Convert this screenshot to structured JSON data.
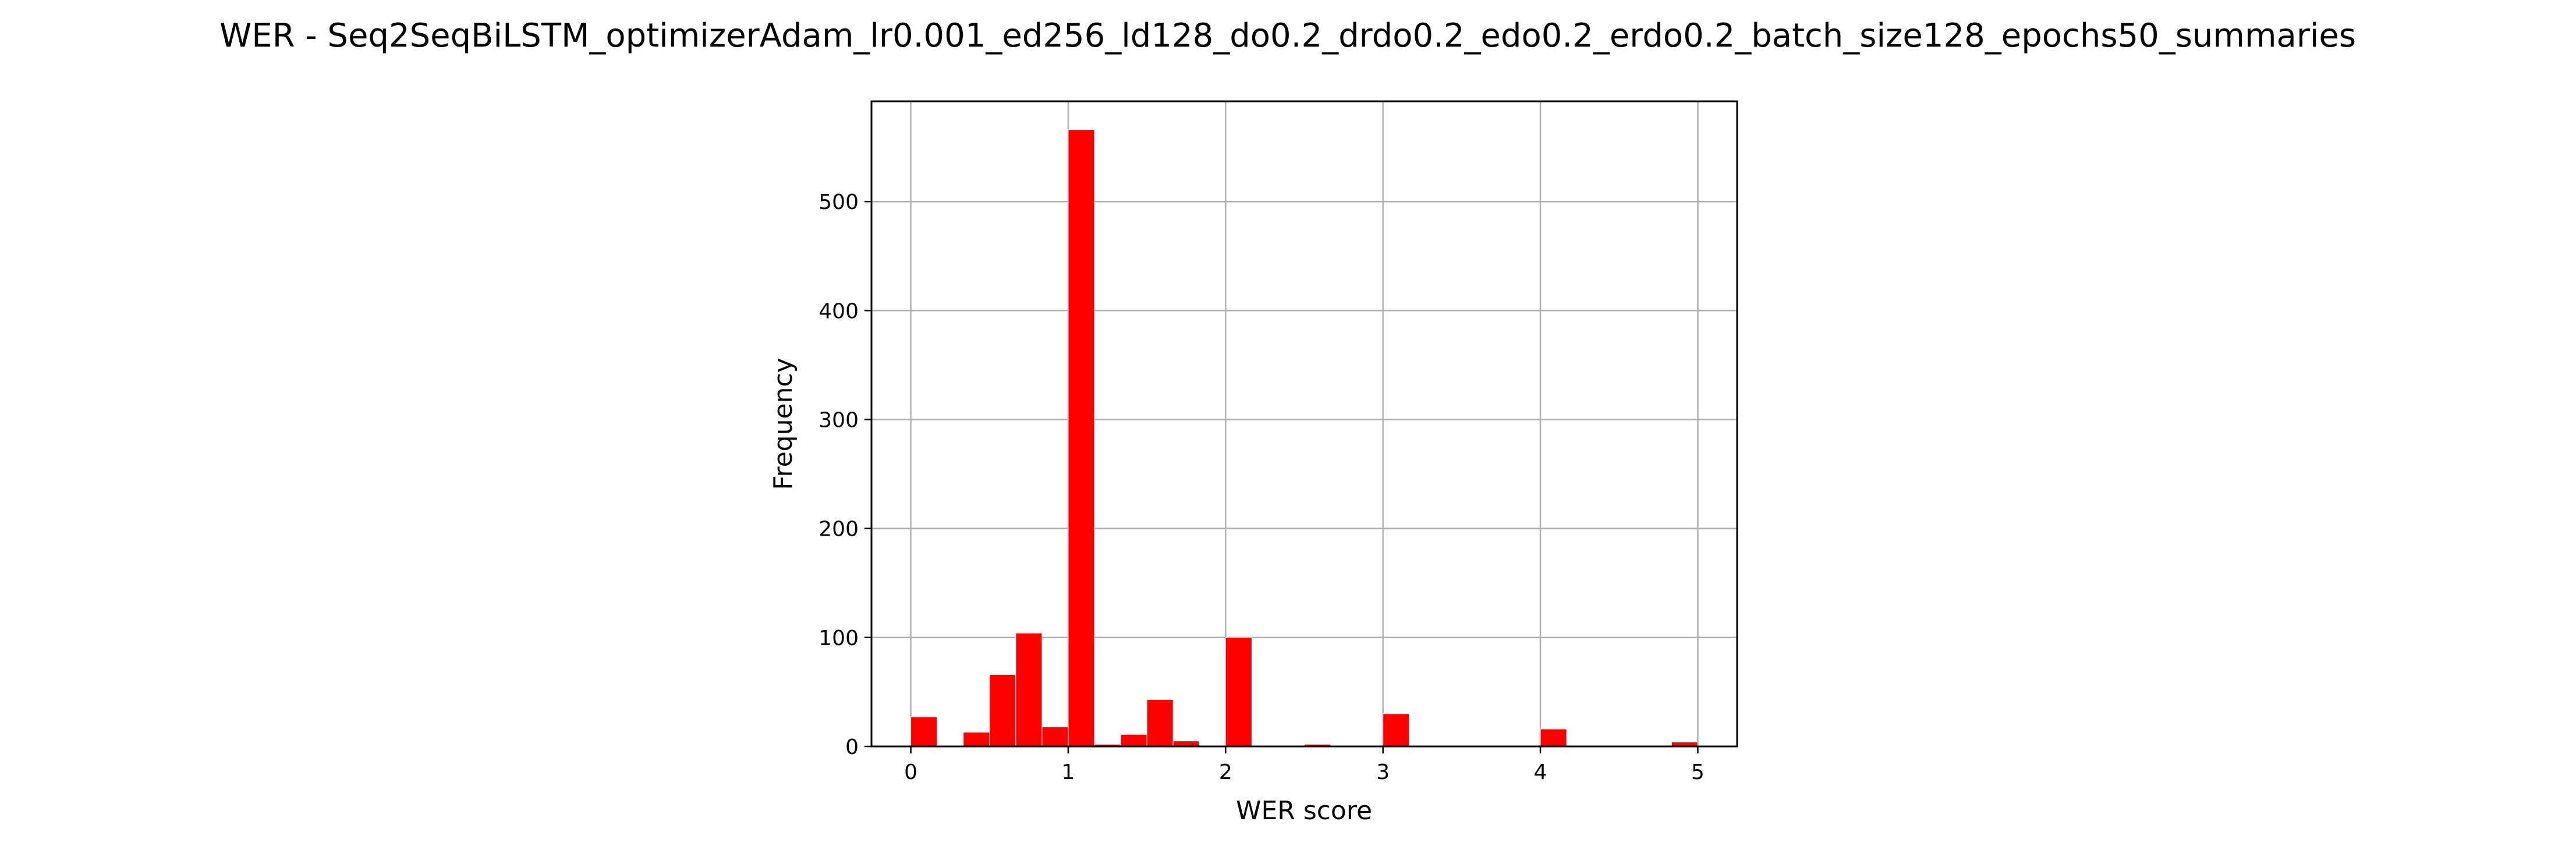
{
  "chart_data": {
    "type": "bar",
    "title": "WER - Seq2SeqBiLSTM_optimizerAdam_lr0.001_ed256_ld128_do0.2_drdo0.2_edo0.2_erdo0.2_batch_size128_epochs50_summaries",
    "xlabel": "WER score",
    "ylabel": "Frequency",
    "xlim": [
      -0.25,
      5.25
    ],
    "ylim": [
      0,
      592
    ],
    "xticks": [
      "0",
      "1",
      "2",
      "3",
      "4",
      "5"
    ],
    "yticks": [
      "0",
      "100",
      "200",
      "300",
      "400",
      "500"
    ],
    "grid": true,
    "bar_color": "#ff0000",
    "bin_width": 0.1667,
    "bins": [
      {
        "x0": 0.0,
        "count": 27
      },
      {
        "x0": 0.1667,
        "count": 1
      },
      {
        "x0": 0.3333,
        "count": 13
      },
      {
        "x0": 0.5,
        "count": 66
      },
      {
        "x0": 0.6667,
        "count": 104
      },
      {
        "x0": 0.8333,
        "count": 18
      },
      {
        "x0": 1.0,
        "count": 566
      },
      {
        "x0": 1.1667,
        "count": 2
      },
      {
        "x0": 1.3333,
        "count": 11
      },
      {
        "x0": 1.5,
        "count": 43
      },
      {
        "x0": 1.6667,
        "count": 5
      },
      {
        "x0": 1.8333,
        "count": 0
      },
      {
        "x0": 2.0,
        "count": 100
      },
      {
        "x0": 2.1667,
        "count": 0
      },
      {
        "x0": 2.3333,
        "count": 0
      },
      {
        "x0": 2.5,
        "count": 2
      },
      {
        "x0": 2.6667,
        "count": 0
      },
      {
        "x0": 2.8333,
        "count": 0
      },
      {
        "x0": 3.0,
        "count": 30
      },
      {
        "x0": 3.1667,
        "count": 0
      },
      {
        "x0": 3.3333,
        "count": 0
      },
      {
        "x0": 3.5,
        "count": 0
      },
      {
        "x0": 3.6667,
        "count": 0
      },
      {
        "x0": 3.8333,
        "count": 0
      },
      {
        "x0": 4.0,
        "count": 16
      },
      {
        "x0": 4.1667,
        "count": 0
      },
      {
        "x0": 4.3333,
        "count": 0
      },
      {
        "x0": 4.5,
        "count": 0
      },
      {
        "x0": 4.6667,
        "count": 0
      },
      {
        "x0": 4.8333,
        "count": 4
      }
    ]
  }
}
